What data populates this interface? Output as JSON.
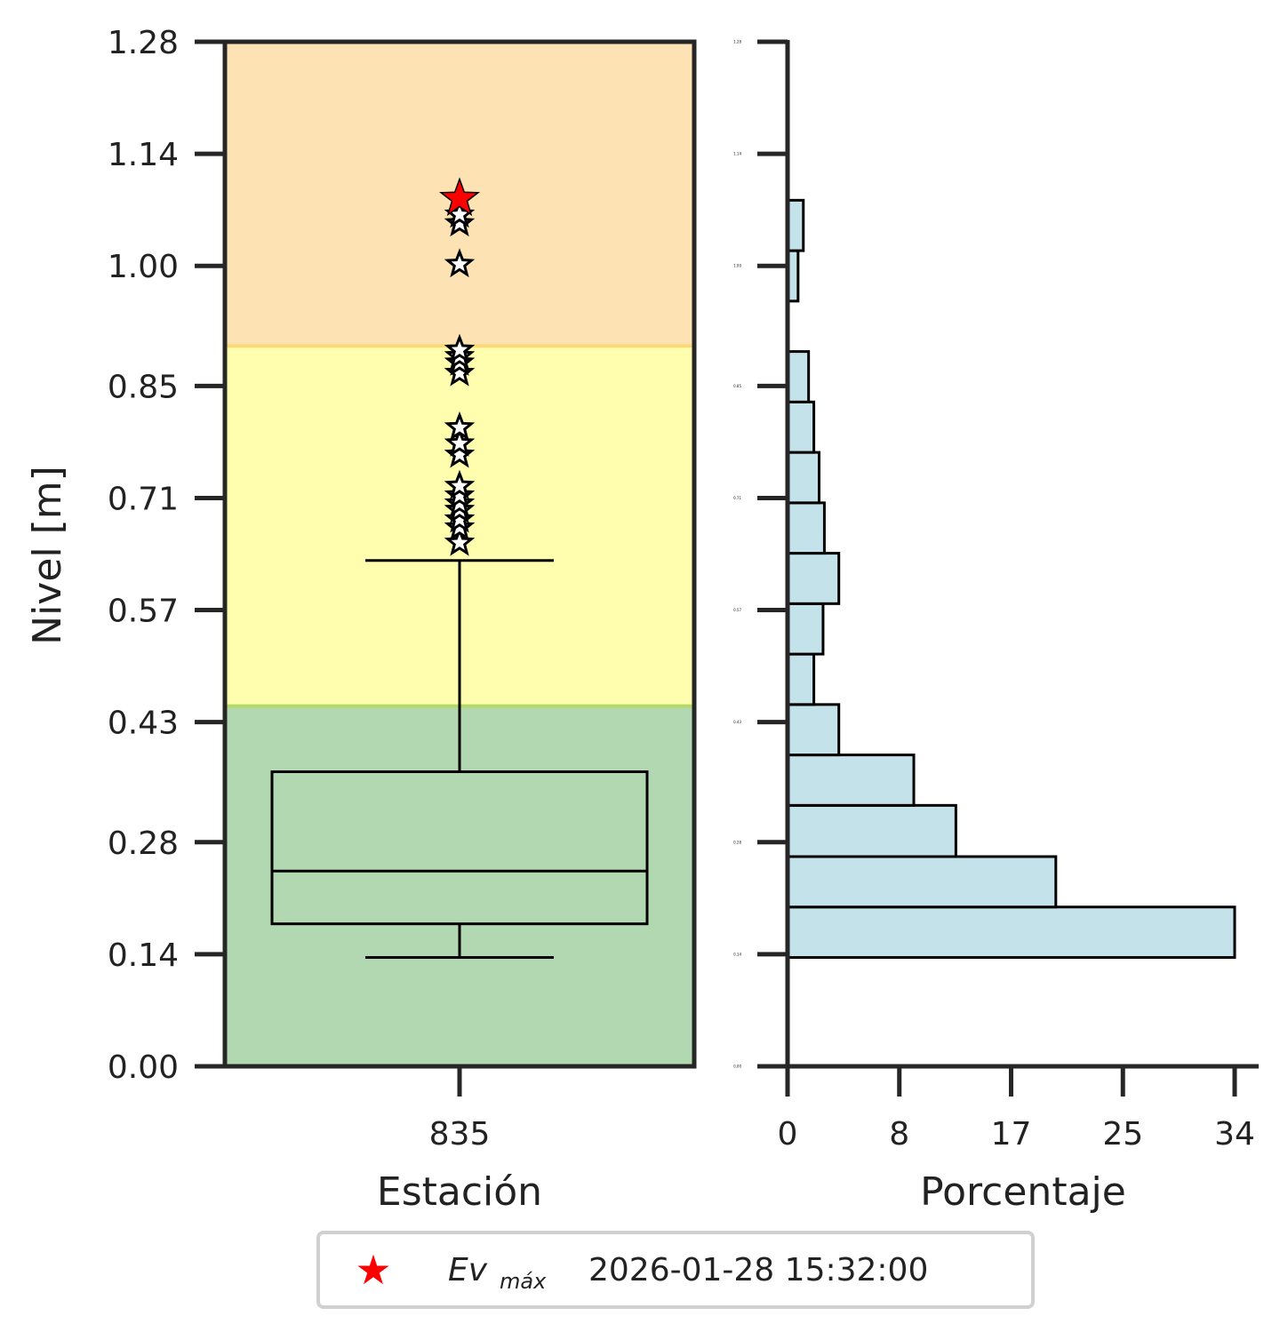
{
  "chart_data": [
    {
      "type": "box",
      "ylabel": "Nivel [m]",
      "xlabel": "Estación",
      "category": "835",
      "ylim": [
        0,
        1.28
      ],
      "yticks": [
        "0.00",
        "0.14",
        "0.28",
        "0.43",
        "0.57",
        "0.71",
        "0.85",
        "1.00",
        "1.14",
        "1.28"
      ],
      "ytick_values": [
        0.0,
        0.14,
        0.28,
        0.43,
        0.57,
        0.71,
        0.85,
        1.0,
        1.14,
        1.28
      ],
      "bands": [
        {
          "from": 0.0,
          "to": 0.45,
          "color": "#b2d8b1"
        },
        {
          "from": 0.45,
          "to": 0.9,
          "color": "#fefeae"
        },
        {
          "from": 0.9,
          "to": 1.28,
          "color": "#fde2b3"
        }
      ],
      "box": {
        "whisker_low": 0.136,
        "q1": 0.178,
        "median": 0.244,
        "q3": 0.368,
        "whisker_high": 0.632
      },
      "outliers": [
        0.654,
        0.673,
        0.683,
        0.695,
        0.703,
        0.713,
        0.725,
        0.764,
        0.778,
        0.798,
        0.866,
        0.879,
        0.887,
        0.895,
        1.002,
        1.053,
        1.064
      ],
      "max_event": 1.084,
      "max_event_color": "#ff0000"
    },
    {
      "type": "bar",
      "orientation": "horizontal",
      "xlabel": "Porcentaje",
      "xlim": [
        0,
        34
      ],
      "xticks": [
        "0",
        "8",
        "17",
        "25",
        "34"
      ],
      "xtick_values": [
        0,
        8.5,
        17,
        25.5,
        34
      ],
      "bar_color": "#c3e2ea",
      "bins": [
        {
          "from": 0.136,
          "to": 0.199,
          "value": 34.0
        },
        {
          "from": 0.199,
          "to": 0.262,
          "value": 20.4
        },
        {
          "from": 0.262,
          "to": 0.326,
          "value": 12.8
        },
        {
          "from": 0.326,
          "to": 0.389,
          "value": 9.6
        },
        {
          "from": 0.389,
          "to": 0.452,
          "value": 3.9
        },
        {
          "from": 0.452,
          "to": 0.515,
          "value": 2.0
        },
        {
          "from": 0.515,
          "to": 0.578,
          "value": 2.7
        },
        {
          "from": 0.578,
          "to": 0.641,
          "value": 3.9
        },
        {
          "from": 0.641,
          "to": 0.704,
          "value": 2.8
        },
        {
          "from": 0.704,
          "to": 0.767,
          "value": 2.4
        },
        {
          "from": 0.767,
          "to": 0.83,
          "value": 2.0
        },
        {
          "from": 0.83,
          "to": 0.893,
          "value": 1.6
        },
        {
          "from": 0.956,
          "to": 1.019,
          "value": 0.8
        },
        {
          "from": 1.019,
          "to": 1.082,
          "value": 1.2
        }
      ],
      "ytick_labels_small": [
        "0.00",
        "0.14",
        "0.28",
        "0.43",
        "0.57",
        "0.71",
        "0.85",
        "1.00",
        "1.14",
        "1.28"
      ]
    }
  ],
  "legend": {
    "symbol": "★",
    "label_main": "Ev",
    "label_sub": "máx",
    "date": "2026-01-28 15:32:00"
  }
}
